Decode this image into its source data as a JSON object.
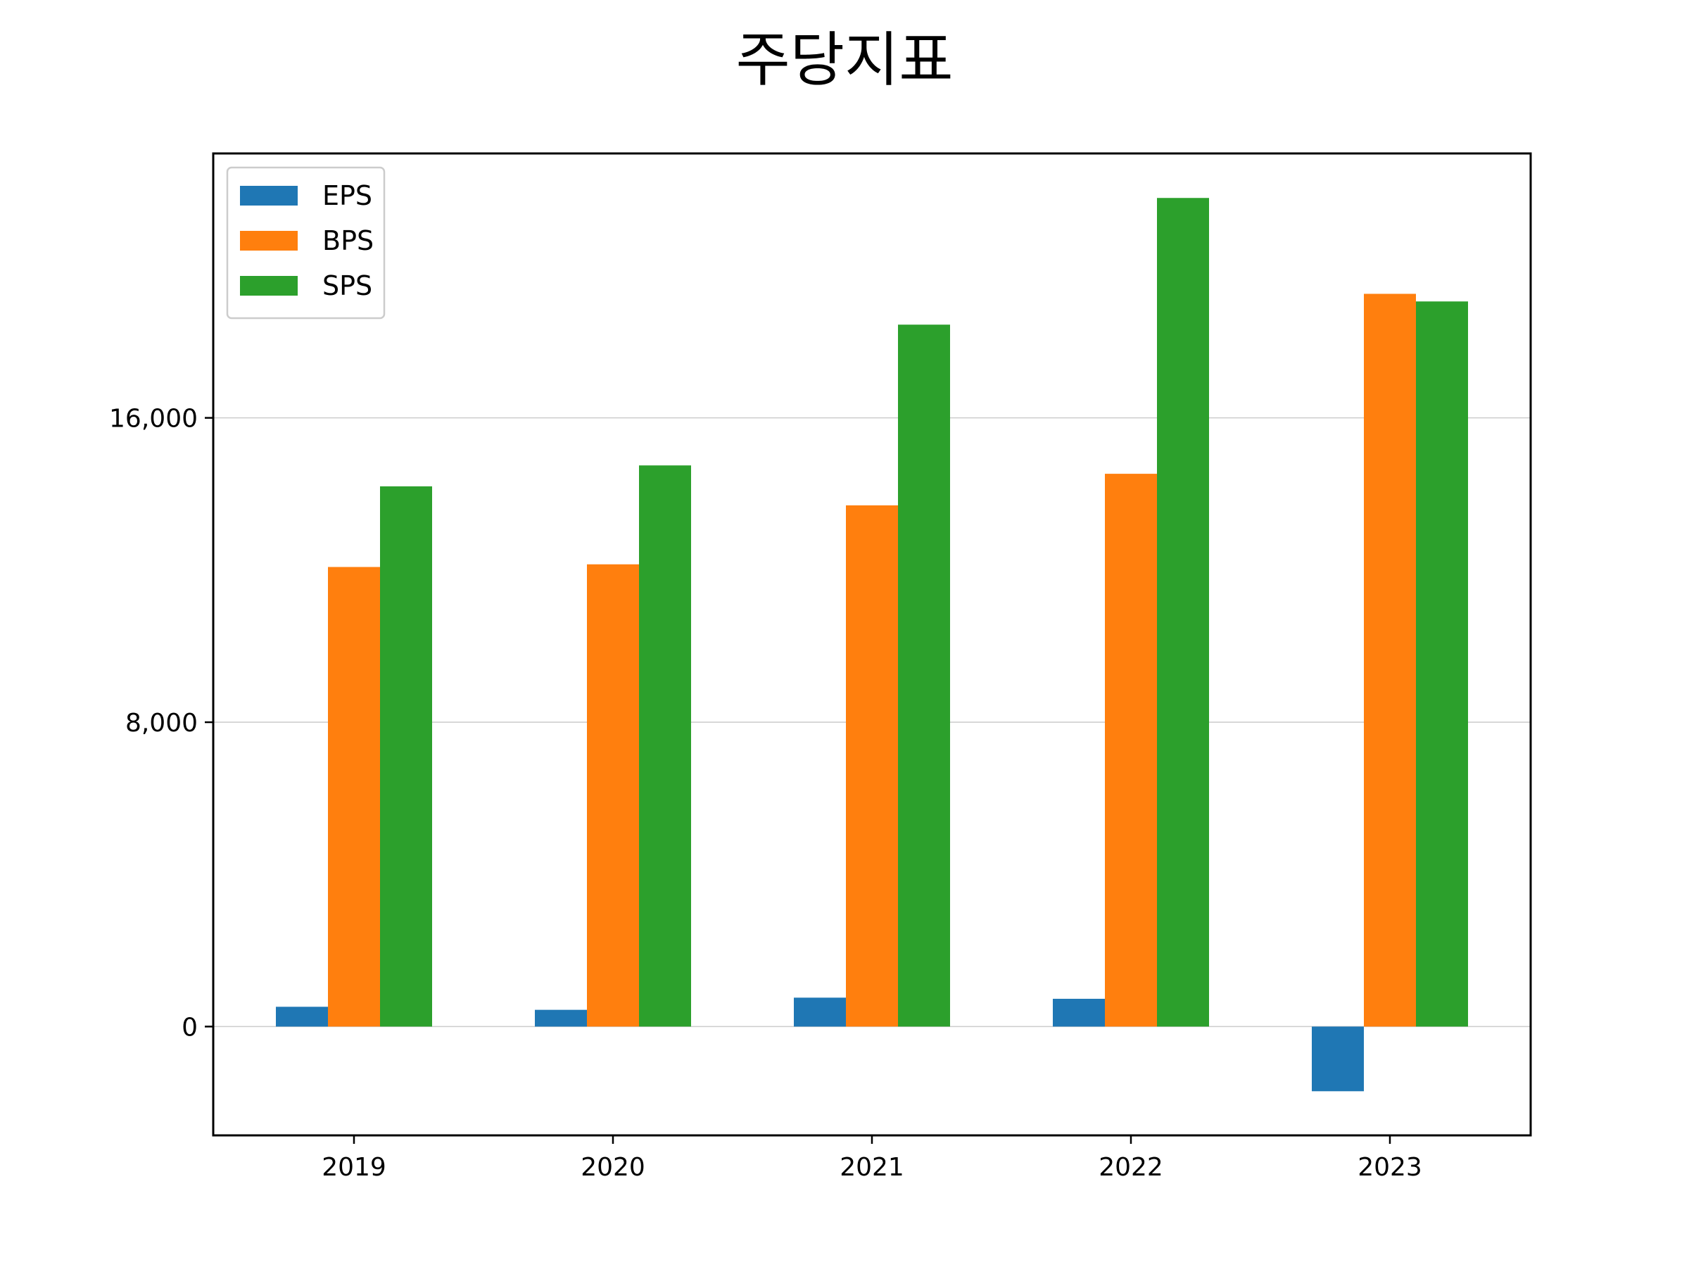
{
  "chart_data": {
    "type": "bar",
    "title": "주당지표",
    "xlabel": "",
    "ylabel": "",
    "categories": [
      "2019",
      "2020",
      "2021",
      "2022",
      "2023"
    ],
    "series": [
      {
        "name": "EPS",
        "color": "#1f77b4",
        "values": [
          520,
          440,
          760,
          730,
          -1700
        ]
      },
      {
        "name": "BPS",
        "color": "#ff7f0e",
        "values": [
          12080,
          12150,
          13700,
          14530,
          19260
        ]
      },
      {
        "name": "SPS",
        "color": "#2ca02c",
        "values": [
          14200,
          14750,
          18450,
          21780,
          19060
        ]
      }
    ],
    "ylim": [
      -2860,
      22950
    ],
    "yticks": [
      0,
      8000,
      16000
    ],
    "ytick_labels": [
      "0",
      "8,000",
      "16,000"
    ],
    "grid": "y",
    "legend_position": "top-left"
  }
}
